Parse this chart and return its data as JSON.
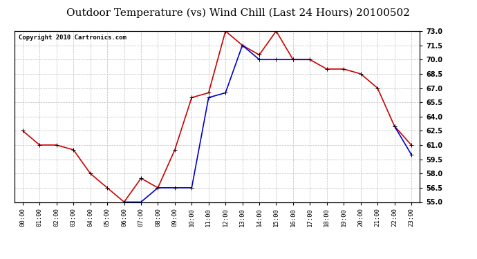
{
  "title": "Outdoor Temperature (vs) Wind Chill (Last 24 Hours) 20100502",
  "copyright_text": "Copyright 2010 Cartronics.com",
  "x_labels": [
    "00:00",
    "01:00",
    "02:00",
    "03:00",
    "04:00",
    "05:00",
    "06:00",
    "07:00",
    "08:00",
    "09:00",
    "10:00",
    "11:00",
    "12:00",
    "13:00",
    "14:00",
    "15:00",
    "16:00",
    "17:00",
    "18:00",
    "19:00",
    "20:00",
    "21:00",
    "22:00",
    "23:00"
  ],
  "temp_y": [
    62.5,
    61.0,
    61.0,
    60.5,
    58.0,
    56.5,
    55.0,
    57.5,
    56.5,
    60.5,
    66.0,
    66.5,
    73.0,
    71.5,
    70.5,
    73.0,
    70.0,
    70.0,
    69.0,
    69.0,
    68.5,
    67.0,
    63.0,
    61.0
  ],
  "wind_chill_y": [
    null,
    null,
    null,
    null,
    null,
    null,
    55.0,
    55.0,
    56.5,
    56.5,
    56.5,
    66.0,
    66.5,
    71.5,
    70.0,
    70.0,
    70.0,
    70.0,
    null,
    null,
    null,
    null,
    63.0,
    60.0
  ],
  "temp_color": "#cc0000",
  "wind_chill_color": "#0000cc",
  "ylim_min": 55.0,
  "ylim_max": 73.0,
  "yticks": [
    55.0,
    56.5,
    58.0,
    59.5,
    61.0,
    62.5,
    64.0,
    65.5,
    67.0,
    68.5,
    70.0,
    71.5,
    73.0
  ],
  "background_color": "#ffffff",
  "grid_color": "#bbbbbb",
  "title_fontsize": 11,
  "copyright_fontsize": 6.5,
  "marker": "+",
  "marker_size": 5,
  "linewidth": 1.2
}
